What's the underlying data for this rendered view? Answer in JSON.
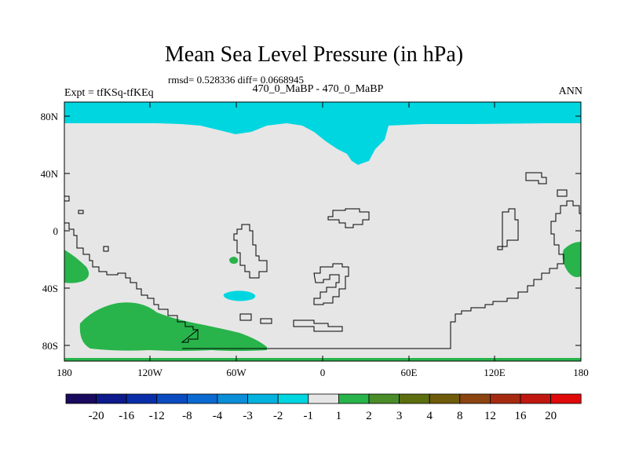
{
  "figure": {
    "title": "Mean Sea Level Pressure (in hPa)",
    "stats": "rmsd= 0.528336 diff= 0.0668945",
    "left_label": "Expt = tfKSq-tfKEq",
    "center_label": "470_0_MaBP - 470_0_MaBP",
    "right_label": "ANN"
  },
  "axes": {
    "lat_ticks": [
      "80N",
      "40N",
      "0",
      "40S",
      "80S"
    ],
    "lon_ticks": [
      "180",
      "120W",
      "60W",
      "0",
      "60E",
      "120E",
      "180"
    ]
  },
  "colorbar": {
    "labels": [
      "-20",
      "-16",
      "-12",
      "-8",
      "-4",
      "-3",
      "-2",
      "-1",
      "1",
      "2",
      "3",
      "4",
      "8",
      "12",
      "16",
      "20"
    ],
    "colors": [
      "#1a0a5e",
      "#0d1a8c",
      "#0a2ea8",
      "#0a4cc0",
      "#0a6ad0",
      "#0a8ed8",
      "#04b2df",
      "#00d6e0",
      "#e6e6e6",
      "#28b44a",
      "#4a8c28",
      "#5c6e10",
      "#6e5c0a",
      "#8c4410",
      "#a62a10",
      "#c01810",
      "#e00a0a"
    ]
  },
  "fills": {
    "background": "#e6e6e6",
    "negative_region": "#00d6e0",
    "positive_region": "#28b44a"
  }
}
